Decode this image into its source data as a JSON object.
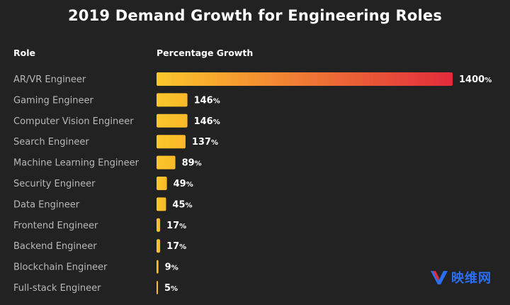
{
  "title": "2019 Demand Growth for Engineering Roles",
  "columns": {
    "role": "Role",
    "growth": "Percentage Growth"
  },
  "watermark": {
    "text": "映维网"
  },
  "colors": {
    "background": "#222222",
    "bar_start": "#fcc72b",
    "bar_end_max": "#e22b3c",
    "role_text": "#b8b8b8",
    "value_text": "#ffffff",
    "watermark": "#2b6ff0"
  },
  "chart_data": {
    "type": "bar",
    "orientation": "horizontal",
    "title": "2019 Demand Growth for Engineering Roles",
    "xlabel": "Percentage Growth",
    "ylabel": "Role",
    "unit": "%",
    "xlim": [
      0,
      1400
    ],
    "grid": false,
    "categories": [
      "AR/VR Engineer",
      "Gaming Engineer",
      "Computer Vision Engineer",
      "Search Engineer",
      "Machine Learning Engineer",
      "Security Engineer",
      "Data Engineer",
      "Frontend Engineer",
      "Backend Engineer",
      "Blockchain Engineer",
      "Full-stack Engineer"
    ],
    "values": [
      1400,
      146,
      146,
      137,
      89,
      49,
      45,
      17,
      17,
      9,
      5
    ],
    "labels": [
      "1400%",
      "146%",
      "146%",
      "137%",
      "89%",
      "49%",
      "45%",
      "17%",
      "17%",
      "9%",
      "5%"
    ]
  }
}
